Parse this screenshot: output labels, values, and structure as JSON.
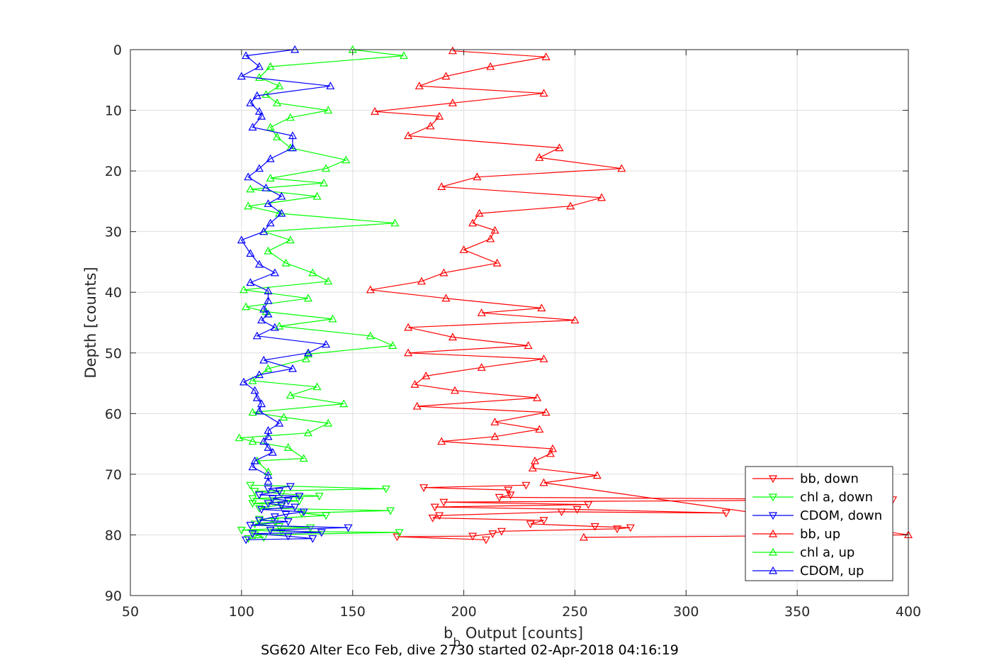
{
  "chart_data": {
    "type": "line",
    "ylabel": "Depth [counts]",
    "xlabel_main": "b",
    "xlabel_sub": "b",
    "xlabel_rest": " Output [counts]",
    "caption": "SG620 Alter Eco Feb, dive 2730 started 02-Apr-2018 04:16:19",
    "xlim": [
      50,
      400
    ],
    "ylim": [
      0,
      90
    ],
    "y_reversed": true,
    "grid": true,
    "legend_position": "lower-right",
    "xticks": [
      "50",
      "100",
      "150",
      "200",
      "250",
      "300",
      "350",
      "400"
    ],
    "yticks": [
      "0",
      "10",
      "20",
      "30",
      "40",
      "50",
      "60",
      "70",
      "80",
      "90"
    ],
    "series": [
      {
        "name": "bb, down",
        "color": "#ff0000",
        "marker": "triangle-down",
        "points": [
          [
            228,
            71.8
          ],
          [
            182,
            72.2
          ],
          [
            220,
            72.6
          ],
          [
            221,
            73.4
          ],
          [
            216,
            73.8
          ],
          [
            393,
            74.2
          ],
          [
            191,
            74.6
          ],
          [
            256,
            75.0
          ],
          [
            187,
            75.4
          ],
          [
            251,
            75.8
          ],
          [
            318,
            76.4
          ],
          [
            244,
            76.2
          ],
          [
            189,
            76.8
          ],
          [
            186,
            77.2
          ],
          [
            236,
            77.6
          ],
          [
            230,
            78.2
          ],
          [
            259,
            78.6
          ],
          [
            275,
            78.8
          ],
          [
            269,
            79.0
          ],
          [
            217,
            79.4
          ],
          [
            213,
            79.8
          ],
          [
            204,
            80.2
          ],
          [
            170,
            80.3
          ],
          [
            210,
            80.8
          ]
        ]
      },
      {
        "name": "chl a, down",
        "color": "#00ff00",
        "marker": "triangle-down",
        "points": [
          [
            104,
            71.8
          ],
          [
            165,
            72.4
          ],
          [
            106,
            72.8
          ],
          [
            118,
            73.2
          ],
          [
            135,
            73.6
          ],
          [
            105,
            74.0
          ],
          [
            126,
            74.4
          ],
          [
            105,
            74.8
          ],
          [
            118,
            75.0
          ],
          [
            108,
            75.6
          ],
          [
            167,
            76.0
          ],
          [
            127,
            76.4
          ],
          [
            138,
            76.8
          ],
          [
            108,
            77.4
          ],
          [
            115,
            77.8
          ],
          [
            106,
            78.2
          ],
          [
            117,
            78.6
          ],
          [
            131,
            78.8
          ],
          [
            100,
            79.2
          ],
          [
            118,
            79.4
          ],
          [
            171,
            79.6
          ],
          [
            106,
            80.0
          ],
          [
            110,
            80.4
          ],
          [
            103,
            80.6
          ]
        ]
      },
      {
        "name": "CDOM, down",
        "color": "#0000ff",
        "marker": "triangle-down",
        "points": [
          [
            122,
            72.0
          ],
          [
            112,
            72.4
          ],
          [
            117,
            72.8
          ],
          [
            108,
            73.4
          ],
          [
            126,
            73.6
          ],
          [
            114,
            74.0
          ],
          [
            121,
            74.4
          ],
          [
            112,
            74.8
          ],
          [
            118,
            75.2
          ],
          [
            124,
            75.4
          ],
          [
            109,
            75.8
          ],
          [
            128,
            76.2
          ],
          [
            120,
            76.6
          ],
          [
            115,
            77.0
          ],
          [
            108,
            77.6
          ],
          [
            121,
            77.8
          ],
          [
            104,
            78.4
          ],
          [
            148,
            78.8
          ],
          [
            113,
            79.2
          ],
          [
            136,
            79.6
          ],
          [
            105,
            79.8
          ],
          [
            121,
            80.2
          ],
          [
            132,
            80.6
          ],
          [
            102,
            80.8
          ]
        ]
      },
      {
        "name": "bb, up",
        "color": "#ff0000",
        "marker": "triangle-up",
        "points": [
          [
            195,
            0.2
          ],
          [
            237,
            1.2
          ],
          [
            212,
            2.8
          ],
          [
            192,
            4.4
          ],
          [
            180,
            6.0
          ],
          [
            236,
            7.2
          ],
          [
            195,
            8.8
          ],
          [
            160,
            10.2
          ],
          [
            189,
            11.0
          ],
          [
            185,
            12.6
          ],
          [
            175,
            14.2
          ],
          [
            243,
            16.2
          ],
          [
            234,
            17.8
          ],
          [
            271,
            19.6
          ],
          [
            206,
            21.0
          ],
          [
            190,
            22.6
          ],
          [
            262,
            24.4
          ],
          [
            248,
            25.8
          ],
          [
            207,
            27.0
          ],
          [
            204,
            28.6
          ],
          [
            214,
            29.8
          ],
          [
            212,
            31.2
          ],
          [
            200,
            33.0
          ],
          [
            215,
            35.2
          ],
          [
            191,
            36.8
          ],
          [
            181,
            38.2
          ],
          [
            158,
            39.6
          ],
          [
            192,
            41.0
          ],
          [
            235,
            42.6
          ],
          [
            208,
            43.4
          ],
          [
            250,
            44.6
          ],
          [
            175,
            45.8
          ],
          [
            195,
            47.4
          ],
          [
            229,
            48.8
          ],
          [
            175,
            50.0
          ],
          [
            236,
            51.0
          ],
          [
            208,
            52.4
          ],
          [
            183,
            53.8
          ],
          [
            178,
            55.2
          ],
          [
            196,
            56.2
          ],
          [
            233,
            57.4
          ],
          [
            179,
            58.8
          ],
          [
            237,
            59.8
          ],
          [
            214,
            61.4
          ],
          [
            234,
            62.6
          ],
          [
            214,
            63.8
          ],
          [
            190,
            64.6
          ],
          [
            240,
            65.8
          ],
          [
            239,
            66.6
          ],
          [
            232,
            67.8
          ],
          [
            231,
            69.0
          ],
          [
            260,
            70.2
          ],
          [
            236,
            71.4
          ],
          [
            400,
            80.0
          ],
          [
            254,
            80.4
          ]
        ]
      },
      {
        "name": "chl a, up",
        "color": "#00ff00",
        "marker": "triangle-up",
        "points": [
          [
            150,
            0.0
          ],
          [
            173,
            1.0
          ],
          [
            113,
            2.8
          ],
          [
            108,
            4.6
          ],
          [
            117,
            6.0
          ],
          [
            111,
            7.4
          ],
          [
            116,
            8.8
          ],
          [
            139,
            10.0
          ],
          [
            122,
            11.2
          ],
          [
            113,
            12.8
          ],
          [
            116,
            14.4
          ],
          [
            122,
            16.2
          ],
          [
            147,
            18.2
          ],
          [
            138,
            19.6
          ],
          [
            113,
            21.2
          ],
          [
            137,
            22.0
          ],
          [
            104,
            23.0
          ],
          [
            134,
            24.2
          ],
          [
            103,
            25.8
          ],
          [
            117,
            27.0
          ],
          [
            169,
            28.6
          ],
          [
            110,
            30.0
          ],
          [
            122,
            31.4
          ],
          [
            112,
            33.2
          ],
          [
            120,
            35.2
          ],
          [
            132,
            36.8
          ],
          [
            139,
            38.2
          ],
          [
            101,
            39.6
          ],
          [
            130,
            41.0
          ],
          [
            102,
            42.4
          ],
          [
            111,
            43.2
          ],
          [
            141,
            44.4
          ],
          [
            117,
            45.6
          ],
          [
            158,
            47.2
          ],
          [
            168,
            48.8
          ],
          [
            130,
            50.2
          ],
          [
            129,
            51.0
          ],
          [
            112,
            52.6
          ],
          [
            105,
            54.6
          ],
          [
            134,
            55.6
          ],
          [
            122,
            57.0
          ],
          [
            146,
            58.4
          ],
          [
            105,
            59.8
          ],
          [
            119,
            60.6
          ],
          [
            139,
            61.6
          ],
          [
            130,
            63.2
          ],
          [
            99,
            64.0
          ],
          [
            105,
            64.6
          ],
          [
            121,
            65.6
          ],
          [
            128,
            67.4
          ],
          [
            107,
            67.8
          ],
          [
            112,
            69.6
          ]
        ]
      },
      {
        "name": "CDOM, up",
        "color": "#0000ff",
        "marker": "triangle-up",
        "points": [
          [
            124,
            0.0
          ],
          [
            102,
            1.0
          ],
          [
            108,
            2.8
          ],
          [
            100,
            4.4
          ],
          [
            140,
            6.0
          ],
          [
            107,
            7.6
          ],
          [
            104,
            8.8
          ],
          [
            108,
            10.2
          ],
          [
            109,
            11.0
          ],
          [
            105,
            12.8
          ],
          [
            123,
            14.2
          ],
          [
            123,
            16.2
          ],
          [
            113,
            18.0
          ],
          [
            108,
            19.6
          ],
          [
            103,
            21.0
          ],
          [
            111,
            22.8
          ],
          [
            118,
            24.2
          ],
          [
            112,
            25.4
          ],
          [
            118,
            27.0
          ],
          [
            113,
            28.6
          ],
          [
            110,
            30.0
          ],
          [
            100,
            31.4
          ],
          [
            104,
            33.6
          ],
          [
            108,
            35.4
          ],
          [
            115,
            36.8
          ],
          [
            104,
            38.4
          ],
          [
            112,
            39.8
          ],
          [
            112,
            41.4
          ],
          [
            110,
            42.8
          ],
          [
            112,
            43.6
          ],
          [
            109,
            44.6
          ],
          [
            115,
            45.8
          ],
          [
            107,
            47.2
          ],
          [
            138,
            48.6
          ],
          [
            130,
            50.0
          ],
          [
            110,
            51.2
          ],
          [
            123,
            52.6
          ],
          [
            108,
            53.6
          ],
          [
            101,
            54.8
          ],
          [
            106,
            56.2
          ],
          [
            107,
            57.4
          ],
          [
            109,
            58.4
          ],
          [
            108,
            59.6
          ],
          [
            117,
            61.6
          ],
          [
            112,
            62.8
          ],
          [
            112,
            63.8
          ],
          [
            110,
            64.6
          ],
          [
            112,
            65.6
          ],
          [
            114,
            66.4
          ],
          [
            106,
            67.8
          ],
          [
            105,
            68.8
          ],
          [
            112,
            70.2
          ],
          [
            112,
            71.2
          ]
        ]
      }
    ]
  }
}
